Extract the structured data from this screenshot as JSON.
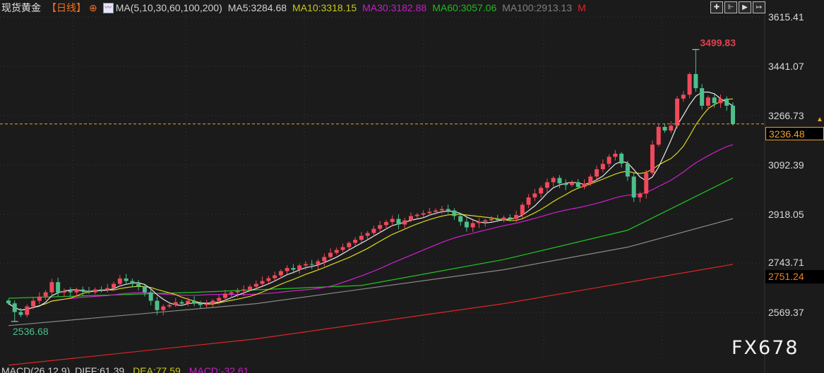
{
  "header": {
    "symbol": "现货黄金",
    "period": "【日线】",
    "ma_label": "MA(5,10,30,60,100,200)",
    "ma5": "MA5:3284.68",
    "ma10": "MA10:3318.15",
    "ma30": "MA30:3182.88",
    "ma60": "MA60:3057.06",
    "ma100": "MA100:2913.13",
    "more": "M"
  },
  "toolbar": [
    {
      "name": "crosshair-icon",
      "glyph": "✚"
    },
    {
      "name": "zoom-start-icon",
      "glyph": "⊩"
    },
    {
      "name": "play-icon",
      "glyph": "▶"
    },
    {
      "name": "go-end-icon",
      "glyph": "↦"
    }
  ],
  "colors": {
    "up": "#f0495b",
    "down": "#4cbf8c",
    "ma5": "#e8e8e8",
    "ma10": "#d8d81c",
    "ma30": "#d21ed2",
    "ma60": "#22c422",
    "ma100": "#8a8a8a",
    "ma200": "#e02525",
    "current": "#f0a030"
  },
  "axis": {
    "ticks": [
      "3615.41",
      "3441.07",
      "3266.73",
      "3092.39",
      "2918.05",
      "2743.71",
      "2569.37"
    ]
  },
  "current_price": "3236.48",
  "ma200_last": "2751.24",
  "high_label": "3499.83",
  "low_label": "2536.68",
  "watermark": "FX678",
  "macd": {
    "title": "MACD(26,12,9)",
    "diff": "DIFF:61.39",
    "dea": "DEA:77.59",
    "macd": "MACD:-32.61"
  },
  "chart_data": {
    "type": "candlestick",
    "ylim": [
      2480,
      3660
    ],
    "closes": [
      2601,
      2570,
      2560,
      2590,
      2610,
      2625,
      2640,
      2676,
      2639,
      2645,
      2640,
      2650,
      2645,
      2640,
      2650,
      2648,
      2655,
      2670,
      2689,
      2680,
      2670,
      2660,
      2640,
      2610,
      2577,
      2590,
      2595,
      2605,
      2600,
      2610,
      2601,
      2595,
      2600,
      2610,
      2620,
      2635,
      2640,
      2645,
      2650,
      2660,
      2670,
      2680,
      2690,
      2700,
      2715,
      2726,
      2720,
      2735,
      2740,
      2738,
      2750,
      2765,
      2780,
      2790,
      2800,
      2815,
      2826,
      2840,
      2850,
      2865,
      2878,
      2889,
      2900,
      2880,
      2895,
      2910,
      2915,
      2920,
      2925,
      2930,
      2935,
      2930,
      2910,
      2890,
      2870,
      2885,
      2890,
      2895,
      2900,
      2896,
      2905,
      2900,
      2914,
      2950,
      2976,
      2990,
      3010,
      3030,
      3045,
      3026,
      3020,
      3030,
      3013,
      3025,
      3050,
      3076,
      3095,
      3120,
      3131,
      3096,
      3050,
      2976,
      2990,
      3063,
      3163,
      3226,
      3213,
      3230,
      3326,
      3340,
      3413,
      3363,
      3301,
      3330,
      3310,
      3326,
      3301,
      3236.48
    ],
    "high": {
      "index": 111,
      "value": 3499.83
    },
    "low": {
      "index": 1,
      "value": 2536.68
    },
    "ma_lines": {
      "ma60": [
        [
          0,
          2619
        ],
        [
          30,
          2640
        ],
        [
          57,
          2664
        ],
        [
          80,
          2756
        ],
        [
          100,
          2860
        ],
        [
          117,
          3045
        ]
      ],
      "ma100": [
        [
          0,
          2522
        ],
        [
          40,
          2600
        ],
        [
          80,
          2720
        ],
        [
          100,
          2800
        ],
        [
          117,
          2901
        ]
      ],
      "ma200": [
        [
          0,
          2382
        ],
        [
          40,
          2475
        ],
        [
          80,
          2600
        ],
        [
          117,
          2739
        ]
      ]
    }
  }
}
